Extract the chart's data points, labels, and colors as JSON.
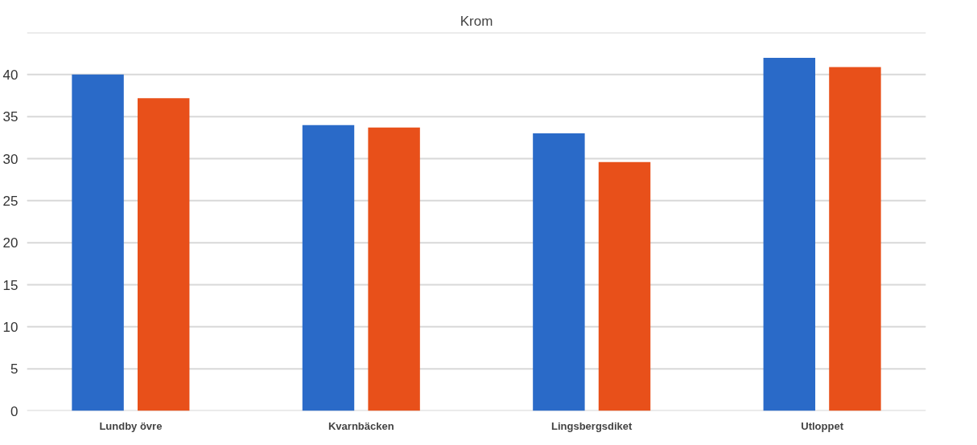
{
  "chart_data": {
    "type": "bar",
    "title": "Krom",
    "categories": [
      "Lundby övre",
      "Kvarnbäcken",
      "Lingsbergsdiket",
      "Utloppet"
    ],
    "series": [
      {
        "color": "#2a6ac8",
        "values": [
          40,
          34,
          33,
          42
        ]
      },
      {
        "color": "#e8501a",
        "values": [
          37.2,
          33.7,
          29.6,
          40.9
        ]
      }
    ],
    "ylim": [
      0,
      45
    ],
    "yticks": [
      0,
      5,
      10,
      15,
      20,
      25,
      30,
      35,
      40,
      {
        "value": 45,
        "label": null
      }
    ],
    "grid": "y"
  }
}
